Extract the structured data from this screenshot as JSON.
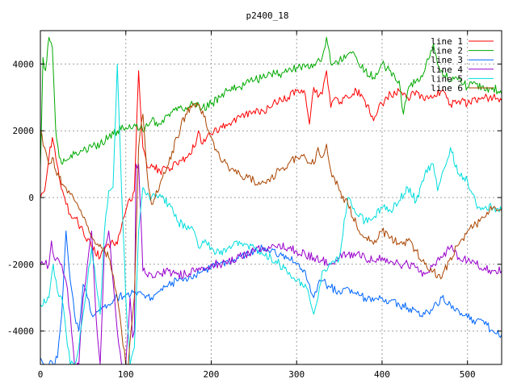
{
  "chart_data": {
    "type": "line",
    "title": "p2400_18",
    "xlabel": "",
    "ylabel": "",
    "xlim": [
      0,
      540
    ],
    "ylim": [
      -5000,
      5000
    ],
    "xticks": [
      0,
      100,
      200,
      300,
      400,
      500
    ],
    "yticks": [
      -4000,
      -2000,
      0,
      2000,
      4000
    ],
    "grid": true,
    "legend_position": "top-right",
    "series": [
      {
        "name": "line 1",
        "color": "#ff0000",
        "x": [
          0,
          5,
          10,
          14,
          18,
          22,
          26,
          30,
          35,
          40,
          50,
          60,
          70,
          80,
          90,
          100,
          110,
          115,
          120,
          125,
          130,
          140,
          150,
          160,
          170,
          180,
          185,
          190,
          200,
          210,
          220,
          230,
          240,
          250,
          260,
          270,
          280,
          290,
          300,
          310,
          315,
          320,
          325,
          330,
          335,
          340,
          345,
          350,
          360,
          370,
          380,
          390,
          395,
          400,
          410,
          420,
          430,
          440,
          450,
          460,
          470,
          480,
          490,
          500,
          510,
          520,
          530,
          540
        ],
        "y": [
          0,
          200,
          1200,
          1800,
          1200,
          600,
          200,
          -200,
          -500,
          -600,
          -1000,
          -1500,
          -1800,
          -1400,
          -1400,
          -400,
          200,
          3800,
          1500,
          900,
          1000,
          800,
          900,
          1000,
          1200,
          1500,
          2000,
          1600,
          1900,
          2100,
          2200,
          2400,
          2500,
          2600,
          2600,
          2700,
          3000,
          3000,
          3200,
          3100,
          2200,
          3300,
          3000,
          3100,
          3800,
          2700,
          3000,
          2800,
          3000,
          3200,
          2900,
          2300,
          2600,
          2800,
          3100,
          3200,
          3000,
          3200,
          2900,
          3000,
          3200,
          2800,
          2900,
          2800,
          2900,
          3000,
          3000,
          2900
        ]
      },
      {
        "name": "line 2",
        "color": "#00aa00",
        "x": [
          0,
          3,
          6,
          10,
          14,
          18,
          22,
          26,
          30,
          40,
          50,
          60,
          70,
          80,
          90,
          100,
          110,
          120,
          130,
          140,
          150,
          160,
          170,
          180,
          190,
          200,
          210,
          220,
          230,
          240,
          250,
          260,
          270,
          280,
          290,
          300,
          310,
          320,
          330,
          335,
          340,
          350,
          360,
          370,
          380,
          390,
          400,
          410,
          420,
          425,
          430,
          440,
          450,
          460,
          465,
          470,
          480,
          490,
          500,
          510,
          520,
          530,
          540
        ],
        "y": [
          900,
          4200,
          3800,
          4800,
          4500,
          2000,
          1200,
          1000,
          1100,
          1300,
          1400,
          1500,
          1600,
          1800,
          2000,
          2100,
          2200,
          2000,
          2300,
          2200,
          2500,
          2600,
          2700,
          2800,
          2700,
          2800,
          3000,
          3200,
          3300,
          3400,
          3500,
          3600,
          3700,
          3700,
          3800,
          3900,
          3900,
          4000,
          4200,
          4800,
          4000,
          4100,
          4300,
          4200,
          3800,
          3600,
          4000,
          3800,
          3500,
          2500,
          3200,
          3500,
          3800,
          4600,
          4000,
          3800,
          3500,
          3600,
          3300,
          3400,
          3200,
          3300,
          3100
        ]
      },
      {
        "name": "line 3",
        "color": "#0066ff",
        "x": [
          0,
          5,
          10,
          15,
          20,
          25,
          30,
          35,
          40,
          45,
          50,
          55,
          60,
          70,
          80,
          90,
          100,
          110,
          120,
          130,
          140,
          150,
          160,
          170,
          180,
          190,
          200,
          210,
          220,
          230,
          240,
          250,
          260,
          270,
          280,
          290,
          300,
          310,
          315,
          320,
          325,
          330,
          340,
          350,
          360,
          370,
          380,
          390,
          400,
          410,
          420,
          430,
          440,
          450,
          460,
          470,
          480,
          490,
          500,
          510,
          520,
          530,
          540
        ],
        "y": [
          -4800,
          -5000,
          -5000,
          -5000,
          -4800,
          -3500,
          -1000,
          -2500,
          -3500,
          -4000,
          -2600,
          -3000,
          -3500,
          -3400,
          -3200,
          -3000,
          -2900,
          -2800,
          -2900,
          -3000,
          -2800,
          -2600,
          -2500,
          -2400,
          -2300,
          -2200,
          -2100,
          -2000,
          -1900,
          -1800,
          -1700,
          -1600,
          -1500,
          -1600,
          -1700,
          -1800,
          -2000,
          -2200,
          -2600,
          -3000,
          -2600,
          -2500,
          -2700,
          -2800,
          -2700,
          -2900,
          -3000,
          -3100,
          -3000,
          -3100,
          -3200,
          -3300,
          -3400,
          -3500,
          -3300,
          -3000,
          -3200,
          -3400,
          -3600,
          -3700,
          -3800,
          -4000,
          -4100
        ]
      },
      {
        "name": "line 4",
        "color": "#9900cc",
        "x": [
          0,
          5,
          10,
          13,
          16,
          20,
          25,
          30,
          35,
          40,
          45,
          50,
          55,
          60,
          65,
          70,
          75,
          80,
          85,
          90,
          95,
          100,
          105,
          108,
          110,
          112,
          115,
          120,
          130,
          140,
          150,
          160,
          170,
          180,
          190,
          200,
          210,
          220,
          230,
          240,
          250,
          260,
          270,
          280,
          290,
          300,
          310,
          320,
          330,
          340,
          350,
          360,
          370,
          380,
          390,
          400,
          410,
          420,
          430,
          440,
          450,
          460,
          470,
          480,
          490,
          500,
          510,
          520,
          530,
          540
        ],
        "y": [
          -2000,
          -2000,
          -2000,
          -1300,
          -1800,
          -1800,
          -2000,
          -2500,
          -3500,
          -5000,
          -5000,
          -3000,
          -2000,
          -1000,
          -3500,
          -5000,
          -1500,
          -1000,
          -2500,
          -4000,
          -5000,
          -5000,
          -3000,
          -4200,
          -4000,
          1000,
          1000,
          -2200,
          -2300,
          -2300,
          -2200,
          -2300,
          -2300,
          -2200,
          -2100,
          -2000,
          -2000,
          -1900,
          -1800,
          -1700,
          -1600,
          -1500,
          -1500,
          -1400,
          -1500,
          -1600,
          -1700,
          -1800,
          -1900,
          -2000,
          -1800,
          -1700,
          -1700,
          -1800,
          -1900,
          -1800,
          -1900,
          -2000,
          -2000,
          -2100,
          -2300,
          -2000,
          -1800,
          -1500,
          -1800,
          -1900,
          -2000,
          -2100,
          -2200,
          -2200
        ]
      },
      {
        "name": "line 5",
        "color": "#00dddd",
        "x": [
          0,
          10,
          15,
          20,
          25,
          30,
          35,
          40,
          45,
          50,
          55,
          60,
          65,
          70,
          75,
          80,
          85,
          90,
          95,
          100,
          105,
          110,
          115,
          120,
          130,
          140,
          150,
          160,
          170,
          180,
          185,
          190,
          200,
          210,
          220,
          230,
          240,
          250,
          260,
          270,
          280,
          290,
          300,
          310,
          315,
          320,
          325,
          330,
          340,
          350,
          360,
          370,
          380,
          390,
          400,
          410,
          420,
          430,
          440,
          450,
          460,
          465,
          470,
          475,
          480,
          490,
          500,
          510,
          520,
          530,
          540
        ],
        "y": [
          -3200,
          -3000,
          -2000,
          -2800,
          -3000,
          -4000,
          -5000,
          -5000,
          -4500,
          -3500,
          -2500,
          -1500,
          -2500,
          -3500,
          -1000,
          200,
          300,
          4000,
          200,
          -3000,
          -5000,
          -4500,
          -1000,
          300,
          0,
          100,
          -200,
          -700,
          -900,
          -1000,
          -1500,
          -1300,
          -1500,
          -1700,
          -1500,
          -1300,
          -1400,
          -1500,
          -1700,
          -1800,
          -2000,
          -2300,
          -2500,
          -2600,
          -3000,
          -3500,
          -3000,
          -2200,
          -2000,
          -1800,
          0,
          -500,
          -700,
          -600,
          -300,
          -400,
          -100,
          300,
          -100,
          700,
          1000,
          200,
          700,
          1000,
          1500,
          700,
          500,
          -200,
          -300,
          -300,
          -400
        ]
      },
      {
        "name": "line 6",
        "color": "#aa4400",
        "x": [
          0,
          5,
          10,
          14,
          18,
          22,
          26,
          30,
          35,
          40,
          50,
          60,
          70,
          80,
          90,
          95,
          100,
          103,
          106,
          110,
          115,
          120,
          125,
          130,
          140,
          150,
          160,
          170,
          180,
          190,
          200,
          210,
          220,
          230,
          240,
          250,
          260,
          270,
          280,
          290,
          300,
          310,
          320,
          325,
          330,
          335,
          340,
          350,
          360,
          370,
          380,
          390,
          400,
          410,
          420,
          430,
          440,
          450,
          460,
          470,
          480,
          490,
          500,
          510,
          520,
          530,
          540
        ],
        "y": [
          2000,
          1500,
          1000,
          1200,
          800,
          600,
          400,
          300,
          100,
          -100,
          -600,
          -1200,
          -1400,
          -1800,
          -3000,
          -4000,
          -5000,
          -5000,
          -4000,
          -3000,
          1500,
          2500,
          700,
          -200,
          400,
          1000,
          1800,
          2500,
          2800,
          2600,
          1800,
          1200,
          900,
          700,
          600,
          500,
          500,
          600,
          800,
          1000,
          1200,
          1200,
          1000,
          1500,
          1200,
          1600,
          800,
          200,
          -200,
          -800,
          -1200,
          -1400,
          -1000,
          -1200,
          -1400,
          -1300,
          -1600,
          -2000,
          -2200,
          -2400,
          -1800,
          -1400,
          -1000,
          -800,
          -600,
          -300,
          -400
        ]
      }
    ]
  }
}
